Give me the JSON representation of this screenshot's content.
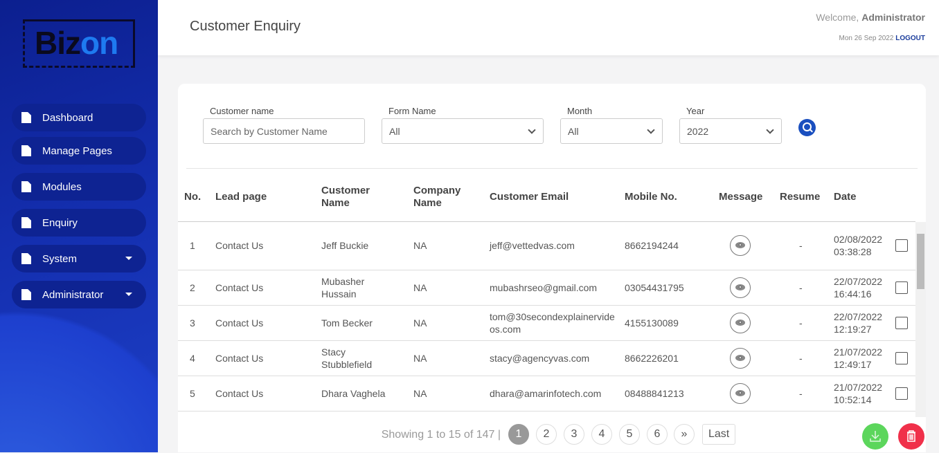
{
  "brand": {
    "logo_text_dark": "Biz",
    "logo_text_accent": "on"
  },
  "sidebar": {
    "items": [
      {
        "label": "Dashboard",
        "icon": "dashboard-icon",
        "has_dropdown": false
      },
      {
        "label": "Manage Pages",
        "icon": "file-icon",
        "has_dropdown": false
      },
      {
        "label": "Modules",
        "icon": "file-icon",
        "has_dropdown": false
      },
      {
        "label": "Enquiry",
        "icon": "file-icon",
        "has_dropdown": false
      },
      {
        "label": "System",
        "icon": "file-icon",
        "has_dropdown": true
      },
      {
        "label": "Administrator",
        "icon": "file-icon",
        "has_dropdown": true
      }
    ]
  },
  "header": {
    "title": "Customer Enquiry",
    "welcome": "Welcome,",
    "user": "Administrator",
    "date": "Mon 26 Sep 2022",
    "logout": "LOGOUT"
  },
  "filters": {
    "customer": {
      "label": "Customer name",
      "placeholder": "Search by Customer Name"
    },
    "form": {
      "label": "Form Name",
      "value": "All"
    },
    "month": {
      "label": "Month",
      "value": "All"
    },
    "year": {
      "label": "Year",
      "value": "2022"
    }
  },
  "table": {
    "columns": [
      "No.",
      "Lead page",
      "Customer Name",
      "Company Name",
      "Customer Email",
      "Mobile No.",
      "Message",
      "Resume",
      "Date"
    ],
    "rows": [
      {
        "no": "1",
        "lead": "Contact Us",
        "name": "Jeff Buckie",
        "company": "NA",
        "email": "jeff@vettedvas.com",
        "mobile": "8662194244",
        "resume": "-",
        "date": "02/08/2022 03:38:28"
      },
      {
        "no": "2",
        "lead": "Contact Us",
        "name": "Mubasher Hussain",
        "company": "NA",
        "email": "mubashrseo@gmail.com",
        "mobile": "03054431795",
        "resume": "-",
        "date": "22/07/2022 16:44:16"
      },
      {
        "no": "3",
        "lead": "Contact Us",
        "name": "Tom Becker",
        "company": "NA",
        "email": "tom@30secondexplainervideos.com",
        "mobile": "4155130089",
        "resume": "-",
        "date": "22/07/2022 12:19:27"
      },
      {
        "no": "4",
        "lead": "Contact Us",
        "name": "Stacy Stubblefield",
        "company": "NA",
        "email": "stacy@agencyvas.com",
        "mobile": "8662226201",
        "resume": "-",
        "date": "21/07/2022 12:49:17"
      },
      {
        "no": "5",
        "lead": "Contact Us",
        "name": "Dhara Vaghela",
        "company": "NA",
        "email": "dhara@amarinfotech.com",
        "mobile": "08488841213",
        "resume": "-",
        "date": "21/07/2022 10:52:14"
      }
    ]
  },
  "pagination": {
    "summary": "Showing 1 to 15 of 147 |",
    "pages": [
      "1",
      "2",
      "3",
      "4",
      "5",
      "6"
    ],
    "current": "1",
    "next": "»",
    "last": "Last"
  },
  "colors": {
    "sidebar": "#142fb0",
    "accent": "#1a4fbf",
    "download": "#5cd65c",
    "delete": "#f0304a"
  }
}
